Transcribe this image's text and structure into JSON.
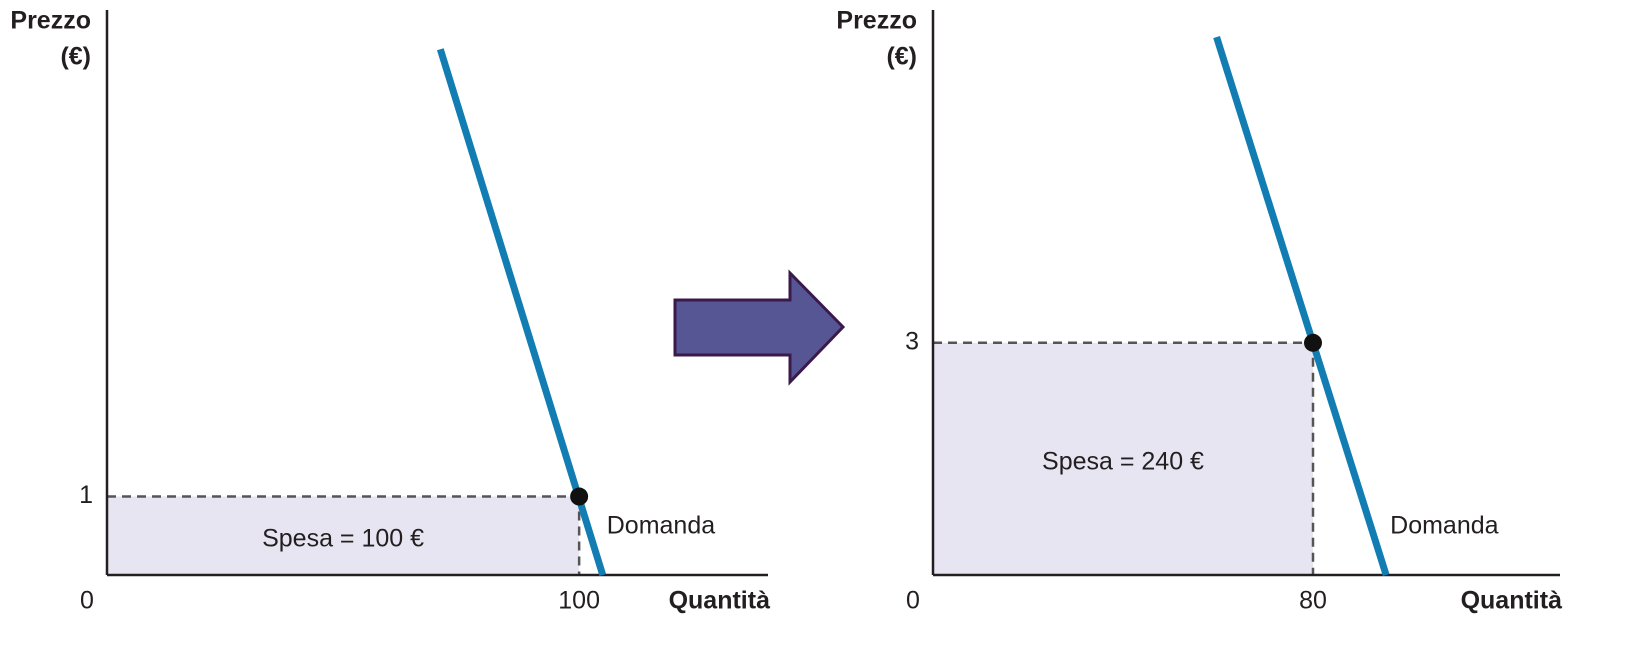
{
  "chart_data": [
    {
      "type": "line",
      "ylabel_lines": [
        "Prezzo",
        "(€)"
      ],
      "xlabel": "Quantità",
      "xlim": [
        0,
        140
      ],
      "ylim": [
        0,
        7.2
      ],
      "xticks": [
        0,
        100
      ],
      "yticks": [
        1
      ],
      "series": [
        {
          "name": "Domanda",
          "color": "#127db3",
          "x": [
            70.6,
            105
          ],
          "values": [
            6.7,
            0
          ]
        }
      ],
      "point": {
        "x": 100,
        "y": 1
      },
      "annotation": "Spesa = 100 €"
    },
    {
      "type": "line",
      "ylabel_lines": [
        "Prezzo",
        "(€)"
      ],
      "xlabel": "Quantità",
      "xlim": [
        0,
        132
      ],
      "ylim": [
        0,
        7.3
      ],
      "xticks": [
        0,
        80
      ],
      "yticks": [
        3
      ],
      "series": [
        {
          "name": "Domanda",
          "color": "#127db3",
          "x": [
            59.7,
            95.4
          ],
          "values": [
            6.95,
            0
          ]
        }
      ],
      "point": {
        "x": 80,
        "y": 3
      },
      "annotation": "Spesa = 240 €"
    }
  ]
}
